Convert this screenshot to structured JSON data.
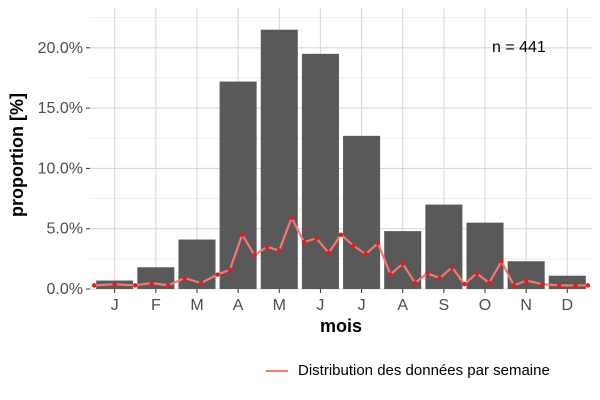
{
  "chart_data": {
    "type": "bar",
    "xlabel": "mois",
    "ylabel": "proportion [%]",
    "categories": [
      "J",
      "F",
      "M",
      "A",
      "M",
      "J",
      "J",
      "A",
      "S",
      "O",
      "N",
      "D"
    ],
    "values": [
      0.7,
      1.8,
      4.1,
      17.2,
      21.5,
      19.5,
      12.7,
      4.8,
      7.0,
      5.5,
      2.3,
      1.1
    ],
    "ylim": [
      0,
      23.3
    ],
    "yticks": [
      "0.0%",
      "5.0%",
      "10.0%",
      "15.0%",
      "20.0%"
    ],
    "ytick_values": [
      0,
      5,
      10,
      15,
      20
    ],
    "bar_color": "#595959",
    "grid": true,
    "annotation": "n = 441",
    "line_series": {
      "name": "Distribution des données par semaine",
      "color": "#f8766d",
      "point_color": "#e41a1c",
      "x": [
        0.5,
        1.0,
        1.5,
        1.9,
        2.3,
        2.7,
        3.1,
        3.5,
        3.8,
        4.1,
        4.4,
        4.7,
        5.0,
        5.3,
        5.6,
        5.9,
        6.2,
        6.5,
        6.8,
        7.1,
        7.4,
        7.7,
        8.0,
        8.3,
        8.6,
        8.9,
        9.2,
        9.5,
        9.8,
        10.1,
        10.4,
        10.7,
        11.0,
        11.4,
        11.8,
        12.2,
        12.5
      ],
      "y": [
        0.3,
        0.4,
        0.3,
        0.5,
        0.3,
        0.9,
        0.5,
        1.2,
        1.6,
        4.5,
        2.8,
        3.5,
        3.2,
        5.9,
        3.9,
        4.2,
        3.0,
        4.5,
        3.6,
        2.9,
        3.8,
        1.2,
        2.1,
        0.5,
        1.3,
        0.9,
        1.8,
        0.4,
        1.3,
        0.5,
        2.3,
        0.3,
        0.7,
        0.4,
        0.3,
        0.3,
        0.3
      ]
    }
  }
}
